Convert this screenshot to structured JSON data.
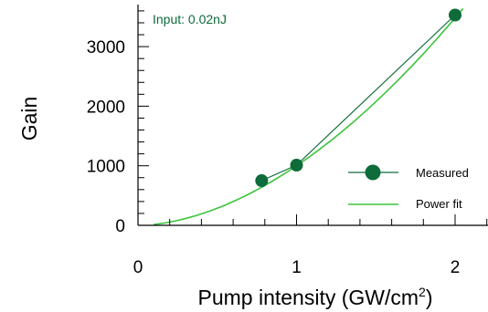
{
  "chart_data": {
    "type": "scatter",
    "xlabel": "Pump intensity (GW/cm",
    "xlabel_sup": "2",
    "xlabel_tail": ")",
    "ylabel": "Gain",
    "xlim": [
      0,
      2.2
    ],
    "ylim": [
      0,
      3650
    ],
    "x_ticks": [
      0,
      1,
      2
    ],
    "x_tick_labels": [
      "0",
      "1",
      "2"
    ],
    "y_ticks": [
      0,
      1000,
      2000,
      3000
    ],
    "y_tick_labels": [
      "0",
      "1000",
      "2000",
      "3000"
    ],
    "x_minor_step": 0.2,
    "y_minor_step": 200,
    "annotation": "Input: 0.02nJ",
    "legend_position": "bottom-right",
    "series": [
      {
        "name": "Measured",
        "kind": "markers-line",
        "color": "#0e6b3a",
        "x": [
          0.78,
          1.0,
          2.0
        ],
        "y": [
          750,
          1010,
          3530
        ]
      },
      {
        "name": "Power fit",
        "kind": "line",
        "color": "#3bc43b",
        "coefficient": 1000,
        "exponent": 1.8,
        "x_range": [
          0.1,
          2.05
        ]
      }
    ]
  }
}
